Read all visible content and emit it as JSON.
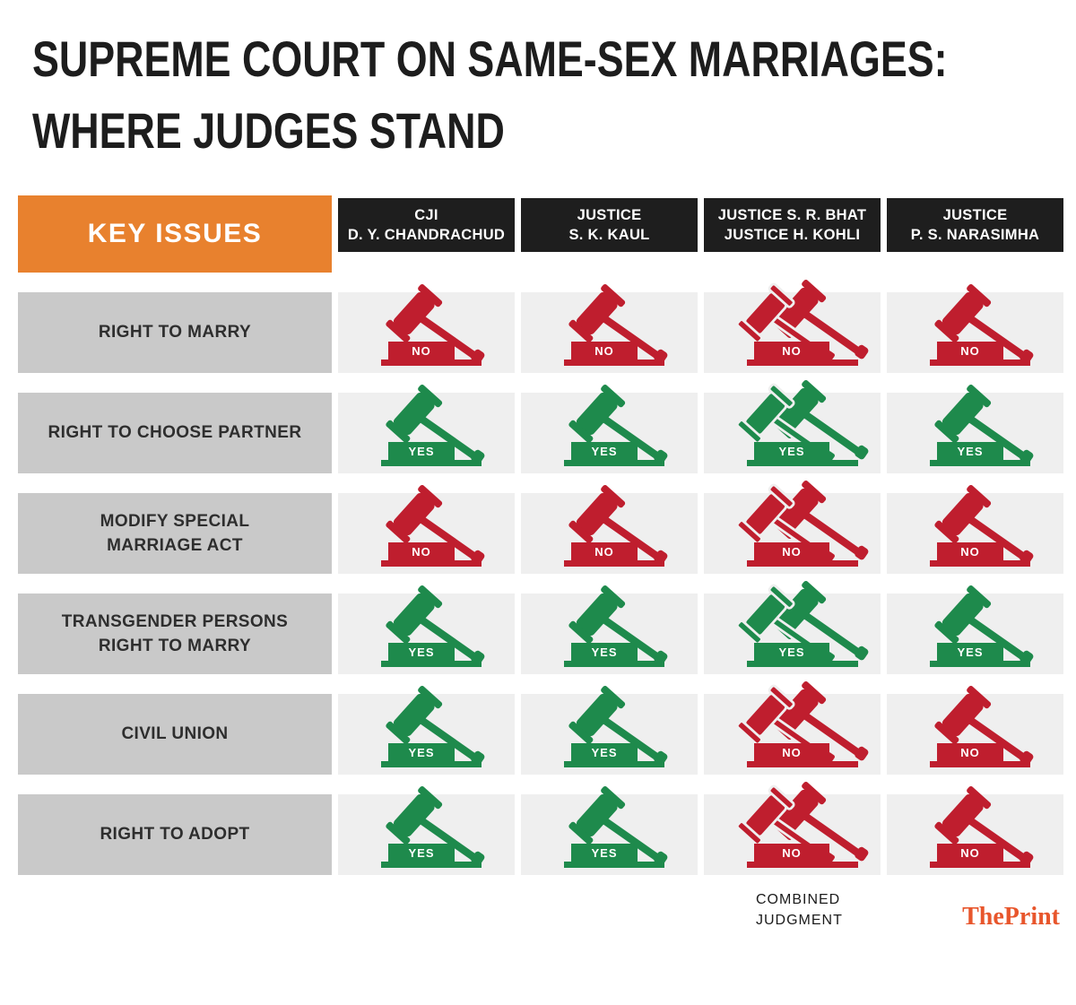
{
  "title": {
    "line1": "SUPREME COURT ON SAME-SEX MARRIAGES:",
    "line2": "WHERE JUDGES STAND"
  },
  "table": {
    "key_issues_label": "KEY ISSUES",
    "columns": [
      {
        "lines": [
          "CJI",
          "D. Y. CHANDRACHUD"
        ],
        "combined": false
      },
      {
        "lines": [
          "JUSTICE",
          "S. K. KAUL"
        ],
        "combined": false
      },
      {
        "lines": [
          "JUSTICE S. R. BHAT",
          "JUSTICE H. KOHLI"
        ],
        "combined": true
      },
      {
        "lines": [
          "JUSTICE",
          "P. S. NARASIMHA"
        ],
        "combined": false
      }
    ],
    "rows": [
      {
        "issue": "RIGHT TO MARRY",
        "verdicts": [
          "NO",
          "NO",
          "NO",
          "NO"
        ]
      },
      {
        "issue": "RIGHT TO CHOOSE PARTNER",
        "verdicts": [
          "YES",
          "YES",
          "YES",
          "YES"
        ]
      },
      {
        "issue": "MODIFY SPECIAL\nMARRIAGE ACT",
        "verdicts": [
          "NO",
          "NO",
          "NO",
          "NO"
        ]
      },
      {
        "issue": "TRANSGENDER PERSONS\nRIGHT TO MARRY",
        "verdicts": [
          "YES",
          "YES",
          "YES",
          "YES"
        ]
      },
      {
        "issue": "CIVIL UNION",
        "verdicts": [
          "YES",
          "YES",
          "NO",
          "NO"
        ]
      },
      {
        "issue": "RIGHT TO ADOPT",
        "verdicts": [
          "YES",
          "YES",
          "NO",
          "NO"
        ]
      }
    ]
  },
  "footer": {
    "note_line1": "COMBINED",
    "note_line2": "JUDGMENT",
    "brand": "ThePrint"
  },
  "colors": {
    "yes_green": "#1e8a4c",
    "no_red": "#bf1e2e",
    "header_orange": "#e8812e",
    "header_black": "#1e1e1e",
    "issue_label_gray": "#c9c9c9",
    "cell_strip_gray": "#efefef",
    "brand_orange": "#e8562c"
  },
  "chart_data": {
    "type": "table",
    "title": "Supreme Court on same-sex marriages: where judges stand",
    "columns": [
      "KEY ISSUES",
      "CJI D. Y. Chandrachud",
      "Justice S. K. Kaul",
      "Justice S. R. Bhat & Justice H. Kohli (combined judgment)",
      "Justice P. S. Narasimha"
    ],
    "rows": [
      [
        "Right to marry",
        "NO",
        "NO",
        "NO",
        "NO"
      ],
      [
        "Right to choose partner",
        "YES",
        "YES",
        "YES",
        "YES"
      ],
      [
        "Modify Special Marriage Act",
        "NO",
        "NO",
        "NO",
        "NO"
      ],
      [
        "Transgender persons right to marry",
        "YES",
        "YES",
        "YES",
        "YES"
      ],
      [
        "Civil union",
        "YES",
        "YES",
        "NO",
        "NO"
      ],
      [
        "Right to adopt",
        "YES",
        "YES",
        "NO",
        "NO"
      ]
    ],
    "legend": {
      "YES": "#1e8a4c",
      "NO": "#bf1e2e"
    },
    "notes": "Third column is a combined judgment by two justices (shown with two gavels)."
  }
}
